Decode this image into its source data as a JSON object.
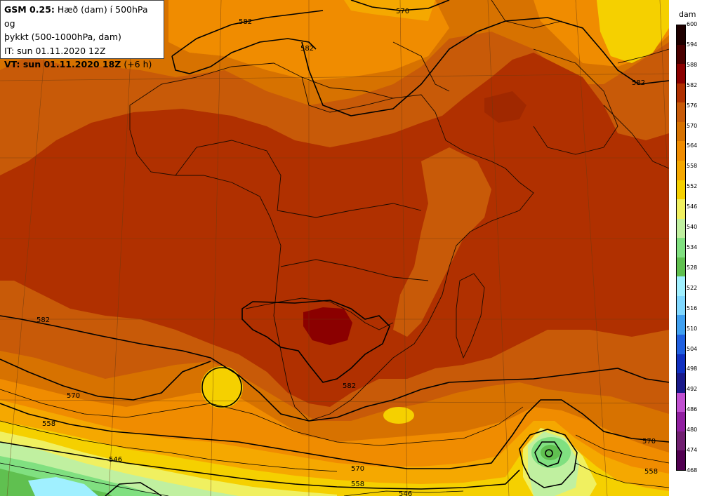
{
  "header": {
    "model": "GSM 0.25:",
    "title_rest": " Hæð (dam) í 500hPa og",
    "title_line2": "þykkt (500-1000hPa, dam)",
    "init_time": "IT: sun 01.11.2020 12Z",
    "valid_prefix": "VT: sun 01.11.2020 18Z",
    "valid_offset": " (+6 h)"
  },
  "colorbar": {
    "unit": "dam",
    "ticks": [
      "600",
      "594",
      "588",
      "582",
      "576",
      "570",
      "564",
      "558",
      "552",
      "546",
      "540",
      "534",
      "528",
      "522",
      "516",
      "510",
      "504",
      "498",
      "492",
      "486",
      "480",
      "474",
      "468"
    ],
    "colors": [
      "#1e0000",
      "#4a0000",
      "#8b0000",
      "#b03000",
      "#c85a08",
      "#d77200",
      "#f08c00",
      "#f5a800",
      "#f5d000",
      "#f0f060",
      "#c0f0a0",
      "#80e080",
      "#60c050",
      "#a0f0ff",
      "#80d8ff",
      "#40a0f0",
      "#2060e0",
      "#1030c0",
      "#1a1a8a",
      "#c050d0",
      "#9020a0",
      "#702070",
      "#500050"
    ]
  },
  "contour_labels": [
    "582",
    "570",
    "582",
    "582",
    "582",
    "582",
    "570",
    "558",
    "546",
    "570",
    "558",
    "558",
    "546",
    "570"
  ],
  "legend_colors": {
    "band_588": "#8b0000",
    "band_576": "#b03000",
    "band_570": "#c85a08",
    "band_564": "#d77200",
    "band_558": "#f08c00",
    "band_552": "#f5a800",
    "band_546": "#f5d000",
    "band_540": "#f0f060",
    "band_534": "#c0f0a0",
    "band_528": "#80e080",
    "band_522": "#60c050",
    "band_516": "#a0f0ff"
  }
}
